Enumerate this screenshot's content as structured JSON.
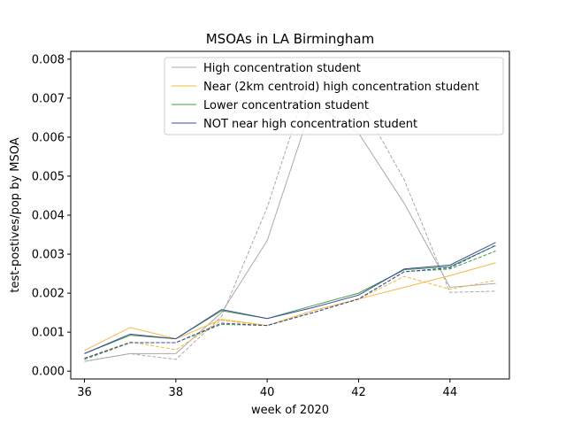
{
  "chart_data": {
    "type": "line",
    "title": "MSOAs in LA Birmingham",
    "xlabel": "week of 2020",
    "ylabel": "test-postives/pop by MSOA",
    "xlim": [
      35.7,
      45.3
    ],
    "ylim": [
      -0.0002,
      0.0082
    ],
    "x_ticks": [
      36,
      38,
      40,
      42,
      44
    ],
    "y_ticks": [
      0.0,
      0.001,
      0.002,
      0.003,
      0.004,
      0.005,
      0.006,
      0.007,
      0.008
    ],
    "y_tick_labels": [
      "0.000",
      "0.001",
      "0.002",
      "0.003",
      "0.004",
      "0.005",
      "0.006",
      "0.007",
      "0.008"
    ],
    "legend_position": "top-right",
    "x": [
      36,
      37,
      38,
      39,
      40,
      41,
      42,
      43,
      44,
      45
    ],
    "series": [
      {
        "name": "High concentration student",
        "color": "#aaaaaa",
        "solid": [
          0.00025,
          0.00045,
          0.00045,
          0.0015,
          0.00335,
          0.0069,
          0.0061,
          0.0043,
          0.00215,
          0.00225
        ],
        "dashed": [
          0.00025,
          0.00045,
          0.0003,
          0.0014,
          0.0042,
          0.0078,
          0.007,
          0.0049,
          0.00202,
          0.00205
        ]
      },
      {
        "name": "Near (2km centroid) high concentration student",
        "color": "#f5b942",
        "solid": [
          0.00053,
          0.00112,
          0.00083,
          0.00133,
          0.00117,
          0.00155,
          0.00185,
          0.00215,
          0.00245,
          0.00278
        ],
        "dashed": [
          0.00033,
          0.00075,
          0.00055,
          0.0013,
          0.00117,
          0.00155,
          0.00185,
          0.00243,
          0.0021,
          0.00233
        ]
      },
      {
        "name": "Lower concentration student",
        "color": "#4a9a4a",
        "solid": [
          0.00045,
          0.00092,
          0.00083,
          0.00155,
          0.00135,
          0.00168,
          0.002,
          0.0026,
          0.00268,
          0.00322
        ],
        "dashed": [
          0.0003,
          0.00073,
          0.00073,
          0.0012,
          0.00117,
          0.0015,
          0.00185,
          0.00255,
          0.00262,
          0.00308
        ]
      },
      {
        "name": "NOT near high concentration student",
        "color": "#3a4ba0",
        "solid": [
          0.00045,
          0.00095,
          0.00083,
          0.00158,
          0.00135,
          0.00163,
          0.00195,
          0.00262,
          0.00272,
          0.0033
        ],
        "dashed": [
          0.00033,
          0.00073,
          0.00073,
          0.00123,
          0.00117,
          0.0015,
          0.00185,
          0.00255,
          0.00265,
          0.00323
        ]
      }
    ]
  }
}
